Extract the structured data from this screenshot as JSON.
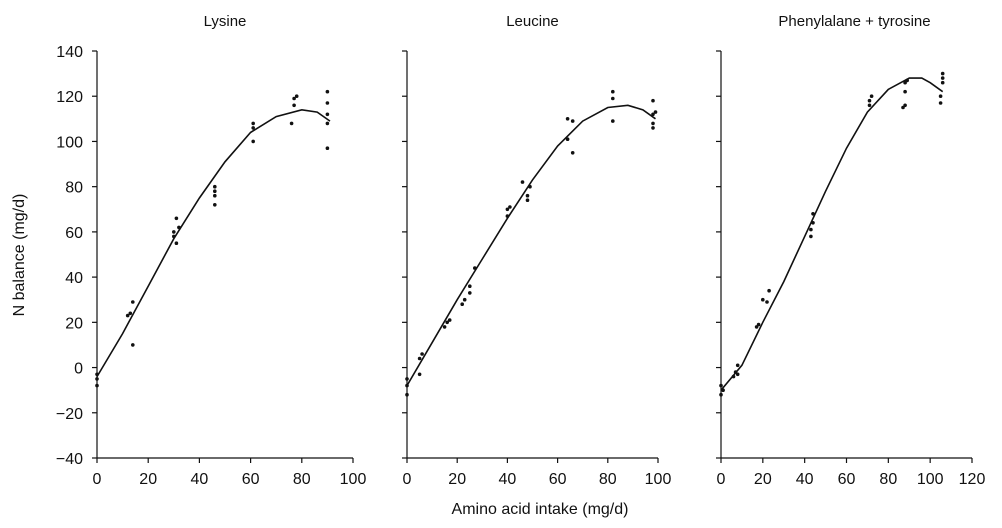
{
  "figure": {
    "xlabel": "Amino acid intake (mg/d)",
    "ylabel": "N balance (mg/d)"
  },
  "chart_data": [
    {
      "type": "scatter",
      "title": "Lysine",
      "xlim": [
        0,
        100
      ],
      "ylim": [
        -40,
        140
      ],
      "xticks": [
        0,
        20,
        40,
        60,
        80,
        100
      ],
      "yticks": [
        -40,
        -20,
        0,
        20,
        40,
        60,
        80,
        100,
        120,
        140
      ],
      "series": [
        {
          "points": [
            [
              0,
              -8
            ],
            [
              0,
              -5
            ],
            [
              0,
              -3
            ],
            [
              12,
              23
            ],
            [
              13,
              24
            ],
            [
              14,
              29
            ],
            [
              14,
              10
            ],
            [
              30,
              58
            ],
            [
              30,
              60
            ],
            [
              31,
              66
            ],
            [
              31,
              55
            ],
            [
              32,
              62
            ],
            [
              46,
              72
            ],
            [
              46,
              76
            ],
            [
              46,
              78
            ],
            [
              46,
              80
            ],
            [
              61,
              100
            ],
            [
              61,
              106
            ],
            [
              61,
              108
            ],
            [
              76,
              108
            ],
            [
              77,
              116
            ],
            [
              77,
              119
            ],
            [
              78,
              120
            ],
            [
              90,
              97
            ],
            [
              90,
              108
            ],
            [
              90,
              112
            ],
            [
              90,
              117
            ],
            [
              90,
              122
            ]
          ]
        }
      ],
      "curve": [
        [
          0,
          -4
        ],
        [
          10,
          15
        ],
        [
          20,
          36
        ],
        [
          30,
          57
        ],
        [
          40,
          75
        ],
        [
          50,
          91
        ],
        [
          60,
          104
        ],
        [
          70,
          111
        ],
        [
          80,
          114
        ],
        [
          86,
          113
        ],
        [
          91,
          109
        ]
      ]
    },
    {
      "type": "scatter",
      "title": "Leucine",
      "xlim": [
        0,
        100
      ],
      "ylim": [
        -40,
        140
      ],
      "xticks": [
        0,
        20,
        40,
        60,
        80,
        100
      ],
      "yticks": [
        -40,
        -20,
        0,
        20,
        40,
        60,
        80,
        100,
        120,
        140
      ],
      "series": [
        {
          "points": [
            [
              0,
              -12
            ],
            [
              0,
              -8
            ],
            [
              0,
              -5
            ],
            [
              5,
              -3
            ],
            [
              5,
              4
            ],
            [
              6,
              6
            ],
            [
              15,
              18
            ],
            [
              16,
              20
            ],
            [
              17,
              21
            ],
            [
              22,
              28
            ],
            [
              23,
              30
            ],
            [
              25,
              33
            ],
            [
              25,
              36
            ],
            [
              27,
              44
            ],
            [
              40,
              67
            ],
            [
              40,
              70
            ],
            [
              41,
              71
            ],
            [
              46,
              82
            ],
            [
              48,
              74
            ],
            [
              48,
              76
            ],
            [
              49,
              80
            ],
            [
              64,
              101
            ],
            [
              64,
              110
            ],
            [
              66,
              95
            ],
            [
              66,
              109
            ],
            [
              82,
              109
            ],
            [
              82,
              119
            ],
            [
              82,
              122
            ],
            [
              98,
              106
            ],
            [
              98,
              108
            ],
            [
              98,
              112
            ],
            [
              98,
              118
            ],
            [
              99,
              113
            ]
          ]
        }
      ],
      "curve": [
        [
          0,
          -8
        ],
        [
          10,
          11
        ],
        [
          20,
          30
        ],
        [
          30,
          48
        ],
        [
          40,
          66
        ],
        [
          50,
          83
        ],
        [
          60,
          98
        ],
        [
          70,
          109
        ],
        [
          80,
          115
        ],
        [
          88,
          116
        ],
        [
          94,
          114
        ],
        [
          99,
          110
        ]
      ]
    },
    {
      "type": "scatter",
      "title": "Phenylalane + tyrosine",
      "xlim": [
        0,
        120
      ],
      "ylim": [
        -40,
        140
      ],
      "xticks": [
        0,
        20,
        40,
        60,
        80,
        100,
        120
      ],
      "yticks": [
        -40,
        -20,
        0,
        20,
        40,
        60,
        80,
        100,
        120,
        140
      ],
      "series": [
        {
          "points": [
            [
              0,
              -12
            ],
            [
              0,
              -8
            ],
            [
              1,
              -10
            ],
            [
              6,
              -4
            ],
            [
              7,
              -2
            ],
            [
              8,
              -3
            ],
            [
              8,
              1
            ],
            [
              17,
              18
            ],
            [
              18,
              19
            ],
            [
              20,
              30
            ],
            [
              22,
              29
            ],
            [
              23,
              34
            ],
            [
              43,
              58
            ],
            [
              43,
              61
            ],
            [
              44,
              64
            ],
            [
              44,
              68
            ],
            [
              71,
              116
            ],
            [
              71,
              118
            ],
            [
              72,
              120
            ],
            [
              87,
              115
            ],
            [
              88,
              116
            ],
            [
              88,
              122
            ],
            [
              88,
              126
            ],
            [
              89,
              127
            ],
            [
              105,
              117
            ],
            [
              105,
              120
            ],
            [
              106,
              126
            ],
            [
              106,
              128
            ],
            [
              106,
              130
            ]
          ]
        }
      ],
      "curve": [
        [
          0,
          -10
        ],
        [
          10,
          1
        ],
        [
          20,
          20
        ],
        [
          30,
          38
        ],
        [
          40,
          58
        ],
        [
          50,
          78
        ],
        [
          60,
          97
        ],
        [
          70,
          113
        ],
        [
          80,
          123
        ],
        [
          90,
          128
        ],
        [
          96,
          128
        ],
        [
          100,
          126
        ],
        [
          106,
          122
        ]
      ]
    }
  ]
}
